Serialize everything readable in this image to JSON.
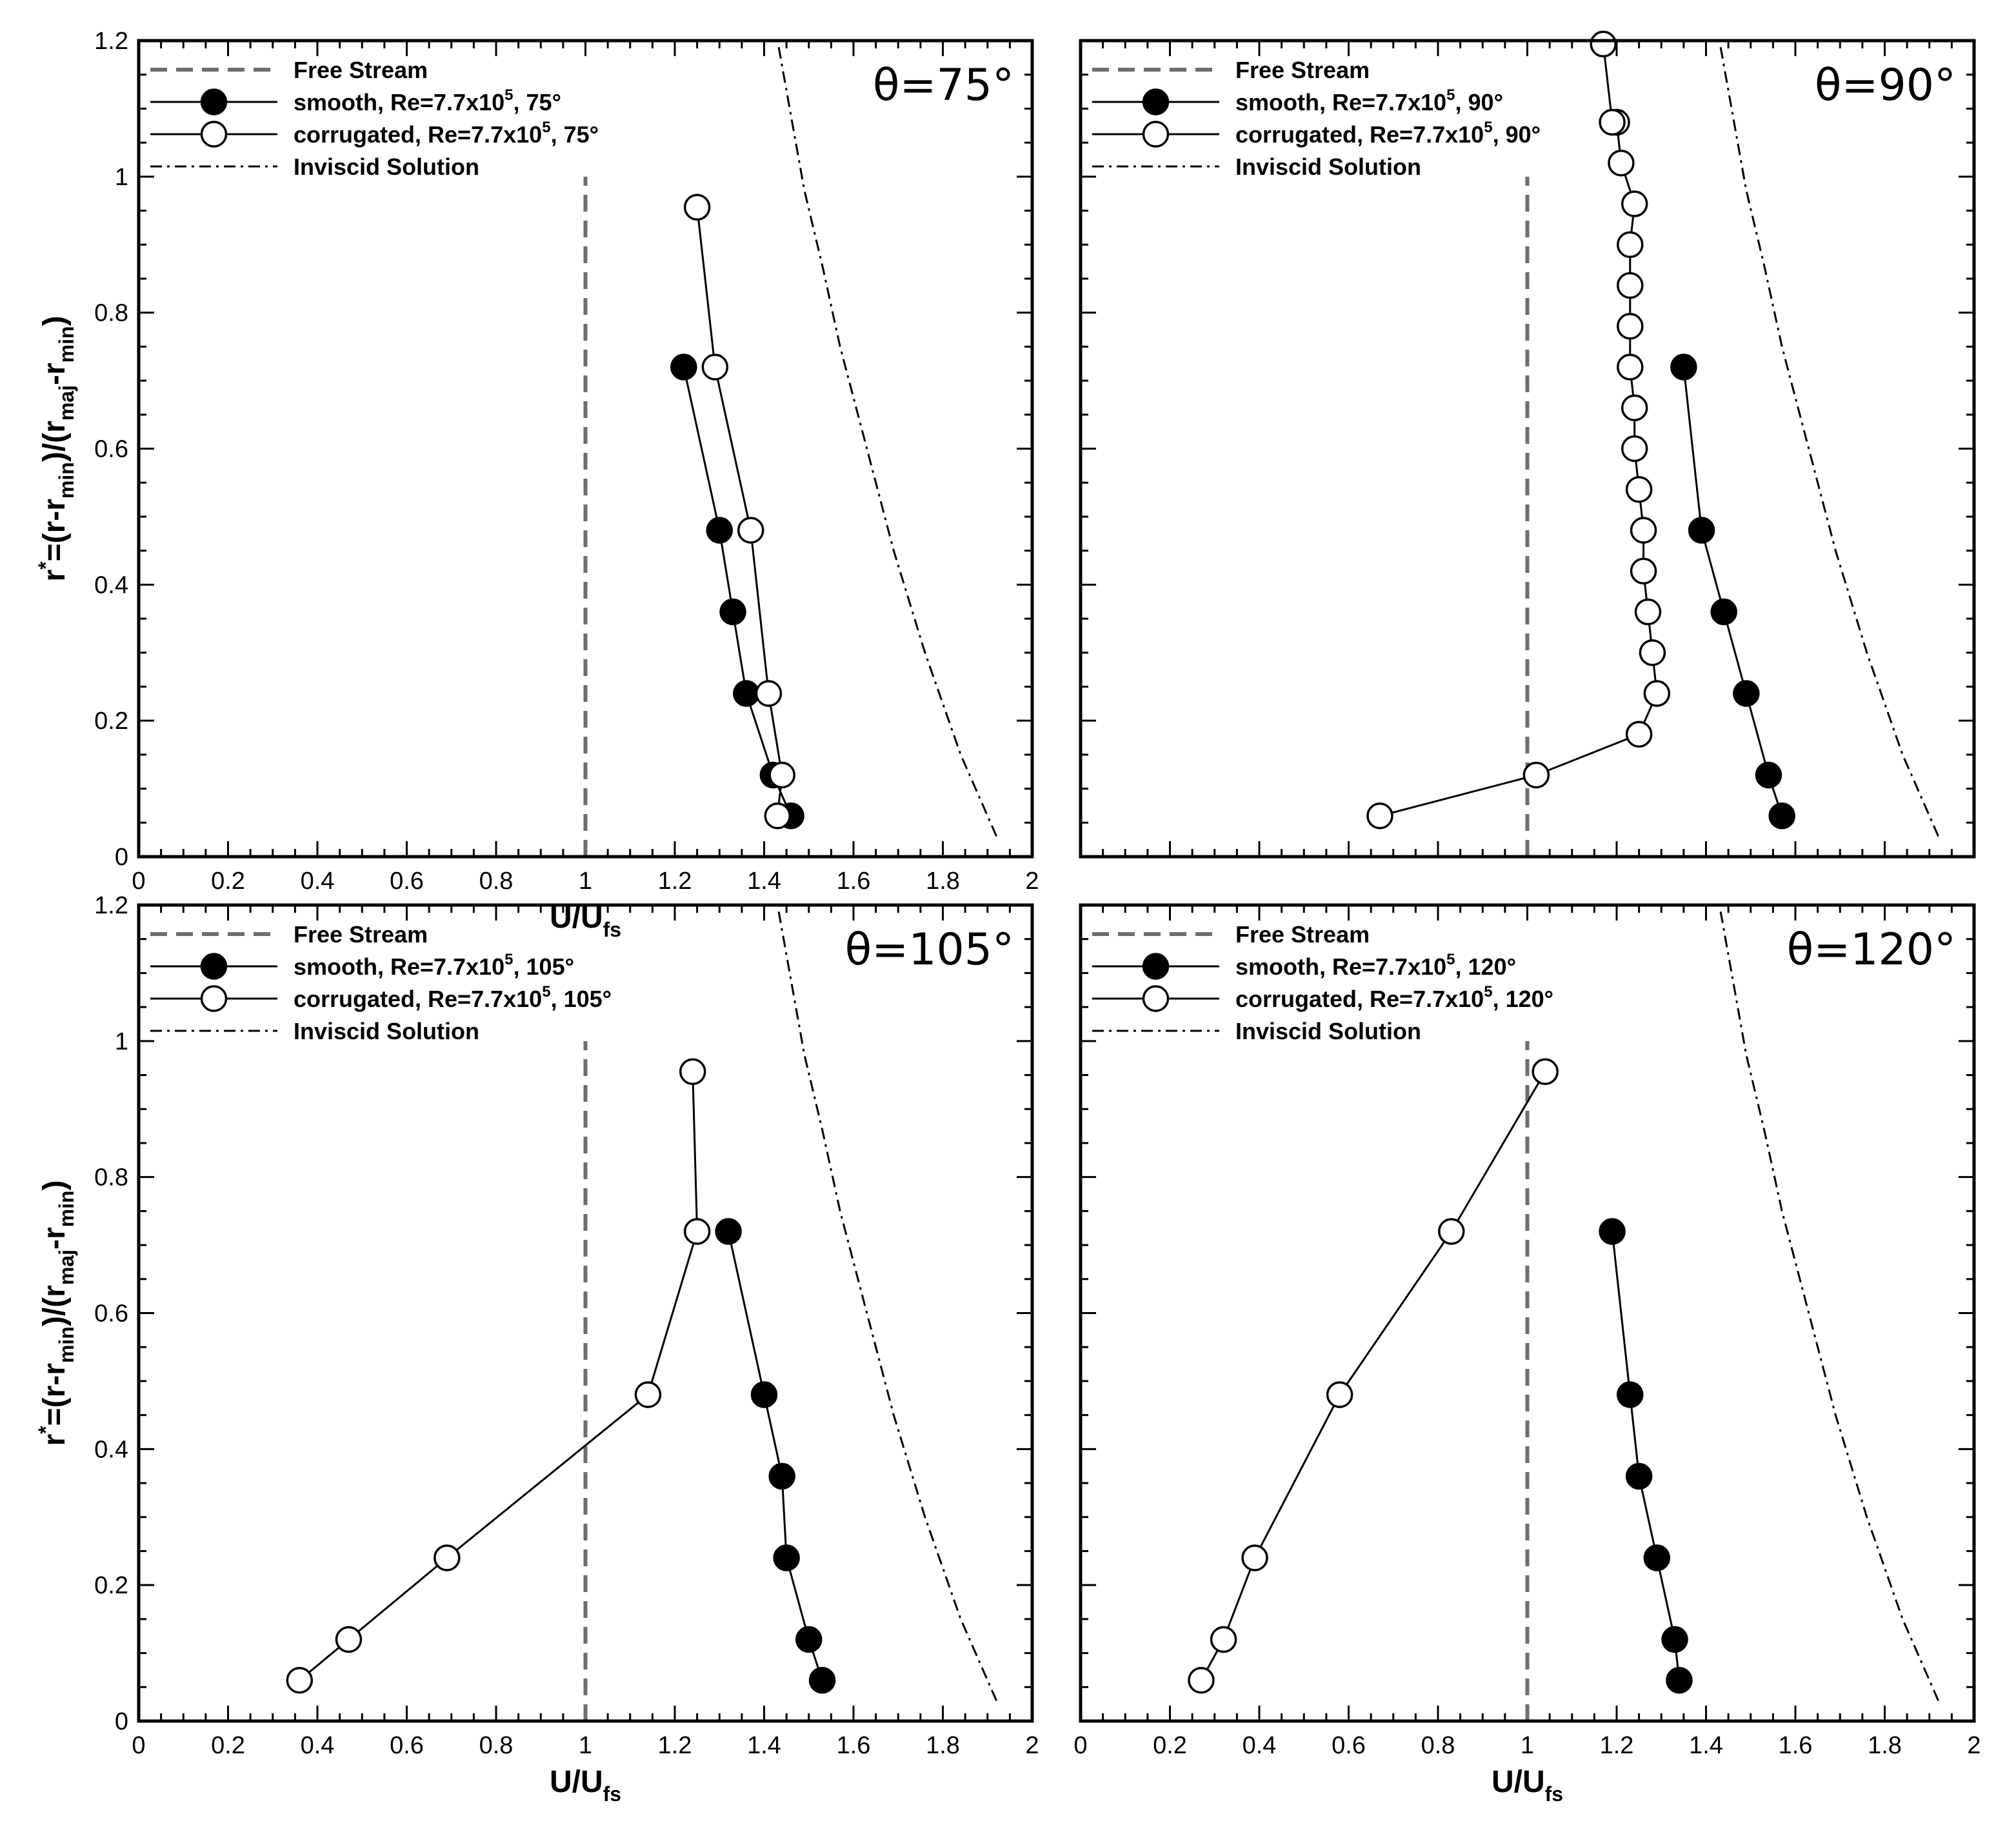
{
  "chart_data": [
    {
      "type": "line",
      "title": "θ=75°",
      "xlabel": "U/U_fs",
      "ylabel": "r*=(r-r_min)/(r_maj-r_min)",
      "xlim": [
        0,
        2
      ],
      "ylim": [
        0,
        1.2
      ],
      "x_ticks": [
        "0",
        "0.2",
        "0.4",
        "0.6",
        "0.8",
        "1",
        "1.2",
        "1.4",
        "1.6",
        "1.8",
        "2"
      ],
      "y_ticks": [
        "0",
        "0.2",
        "0.4",
        "0.6",
        "0.8",
        "1",
        "1.2"
      ],
      "free_stream": {
        "name": "Free Stream",
        "x": 1.0,
        "y": [
          0,
          1.0
        ]
      },
      "series": [
        {
          "name": "smooth, Re=7.7x10^5, 75°",
          "label": "smooth, Re=7.7x10",
          "sup": "5",
          "label_suffix": ", 75°",
          "marker": "filled",
          "x": [
            1.46,
            1.42,
            1.36,
            1.33,
            1.3,
            1.22
          ],
          "y": [
            0.06,
            0.12,
            0.24,
            0.36,
            0.48,
            0.72
          ]
        },
        {
          "name": "corrugated, Re=7.7x10^5, 75°",
          "label": "corrugated, Re=7.7x10",
          "sup": "5",
          "label_suffix": ", 75°",
          "marker": "open",
          "x": [
            1.43,
            1.44,
            1.41,
            1.37,
            1.29,
            1.25
          ],
          "y": [
            0.06,
            0.12,
            0.24,
            0.48,
            0.72,
            0.955
          ]
        }
      ],
      "inviscid": {
        "name": "Inviscid Solution",
        "x": [
          1.92,
          1.84,
          1.76,
          1.69,
          1.63,
          1.57,
          1.53,
          1.49,
          1.46,
          1.43
        ],
        "y": [
          0.03,
          0.15,
          0.3,
          0.45,
          0.6,
          0.75,
          0.87,
          0.98,
          1.09,
          1.2
        ]
      },
      "legend": [
        "Free Stream",
        "smooth, Re=7.7x10^5, 75°",
        "corrugated, Re=7.7x10^5, 75°",
        "Inviscid Solution"
      ]
    },
    {
      "type": "line",
      "title": "θ=90°",
      "xlabel": "",
      "ylabel": "",
      "xlim": [
        0,
        2
      ],
      "ylim": [
        0,
        1.2
      ],
      "free_stream": {
        "name": "Free Stream",
        "x": 1.0,
        "y": [
          0,
          1.0
        ]
      },
      "series": [
        {
          "name": "smooth, Re=7.7x10^5, 90°",
          "label": "smooth, Re=7.7x10",
          "sup": "5",
          "label_suffix": ", 90°",
          "marker": "filled",
          "x": [
            1.57,
            1.54,
            1.49,
            1.44,
            1.39,
            1.35
          ],
          "y": [
            0.06,
            0.12,
            0.24,
            0.36,
            0.48,
            0.72
          ]
        },
        {
          "name": "corrugated, Re=7.7x10^5, 90°",
          "label": "corrugated, Re=7.7x10",
          "sup": "5",
          "label_suffix": ", 90°",
          "marker": "open",
          "x": [
            0.67,
            1.02,
            1.25,
            1.29,
            1.28,
            1.27,
            1.26,
            1.26,
            1.25,
            1.24,
            1.24,
            1.23,
            1.23,
            1.23,
            1.23,
            1.24,
            1.21,
            1.2,
            1.2,
            1.19,
            1.17
          ],
          "y": [
            0.06,
            0.12,
            0.18,
            0.24,
            0.3,
            0.36,
            0.42,
            0.48,
            0.54,
            0.6,
            0.66,
            0.72,
            0.78,
            0.84,
            0.9,
            0.96,
            1.02,
            1.08,
            1.08,
            1.08,
            1.195
          ]
        }
      ],
      "inviscid": {
        "name": "Inviscid Solution",
        "x": [
          1.92,
          1.84,
          1.76,
          1.69,
          1.63,
          1.57,
          1.53,
          1.49,
          1.46,
          1.43
        ],
        "y": [
          0.03,
          0.15,
          0.3,
          0.45,
          0.6,
          0.75,
          0.87,
          0.98,
          1.09,
          1.2
        ]
      },
      "legend": [
        "Free Stream",
        "smooth, Re=7.7x10^5, 90°",
        "corrugated, Re=7.7x10^5, 90°",
        "Inviscid Solution"
      ]
    },
    {
      "type": "line",
      "title": "θ=105°",
      "xlabel": "U/U_fs",
      "ylabel": "r*=(r-r_min)/(r_maj-r_min)",
      "xlim": [
        0,
        2
      ],
      "ylim": [
        0,
        1.2
      ],
      "x_ticks": [
        "0",
        "0.2",
        "0.4",
        "0.6",
        "0.8",
        "1",
        "1.2",
        "1.4",
        "1.6",
        "1.8",
        "2"
      ],
      "y_ticks": [
        "0",
        "0.2",
        "0.4",
        "0.6",
        "0.8",
        "1",
        "1.2"
      ],
      "free_stream": {
        "name": "Free Stream",
        "x": 1.0,
        "y": [
          0,
          1.0
        ]
      },
      "series": [
        {
          "name": "smooth, Re=7.7x10^5, 105°",
          "label": "smooth, Re=7.7x10",
          "sup": "5",
          "label_suffix": ", 105°",
          "marker": "filled",
          "x": [
            1.53,
            1.5,
            1.45,
            1.44,
            1.4,
            1.32
          ],
          "y": [
            0.06,
            0.12,
            0.24,
            0.36,
            0.48,
            0.72
          ]
        },
        {
          "name": "corrugated, Re=7.7x10^5, 105°",
          "label": "corrugated, Re=7.7x10",
          "sup": "5",
          "label_suffix": ", 105°",
          "marker": "open",
          "x": [
            0.36,
            0.47,
            0.69,
            1.14,
            1.25,
            1.24
          ],
          "y": [
            0.06,
            0.12,
            0.24,
            0.48,
            0.72,
            0.955
          ]
        }
      ],
      "inviscid": {
        "name": "Inviscid Solution",
        "x": [
          1.92,
          1.84,
          1.76,
          1.69,
          1.63,
          1.57,
          1.53,
          1.49,
          1.46,
          1.43
        ],
        "y": [
          0.03,
          0.15,
          0.3,
          0.45,
          0.6,
          0.75,
          0.87,
          0.98,
          1.09,
          1.2
        ]
      },
      "legend": [
        "Free Stream",
        "smooth, Re=7.7x10^5, 105°",
        "corrugated, Re=7.7x10^5, 105°",
        "Inviscid Solution"
      ]
    },
    {
      "type": "line",
      "title": "θ=120°",
      "xlabel": "U/U_fs",
      "ylabel": "",
      "xlim": [
        0,
        2
      ],
      "ylim": [
        0,
        1.2
      ],
      "x_ticks": [
        "0",
        "0.2",
        "0.4",
        "0.6",
        "0.8",
        "1",
        "1.2",
        "1.4",
        "1.6",
        "1.8",
        "2"
      ],
      "free_stream": {
        "name": "Free Stream",
        "x": 1.0,
        "y": [
          0,
          1.0
        ]
      },
      "series": [
        {
          "name": "smooth, Re=7.7x10^5, 120°",
          "label": "smooth, Re=7.7x10",
          "sup": "5",
          "label_suffix": ", 120°",
          "marker": "filled",
          "x": [
            1.34,
            1.33,
            1.29,
            1.25,
            1.23,
            1.19
          ],
          "y": [
            0.06,
            0.12,
            0.24,
            0.36,
            0.48,
            0.72
          ]
        },
        {
          "name": "corrugated, Re=7.7x10^5, 120°",
          "label": "corrugated, Re=7.7x10",
          "sup": "5",
          "label_suffix": ", 120°",
          "marker": "open",
          "x": [
            0.27,
            0.32,
            0.39,
            0.58,
            0.83,
            1.04
          ],
          "y": [
            0.06,
            0.12,
            0.24,
            0.48,
            0.72,
            0.955
          ]
        }
      ],
      "inviscid": {
        "name": "Inviscid Solution",
        "x": [
          1.92,
          1.84,
          1.76,
          1.69,
          1.63,
          1.57,
          1.53,
          1.49,
          1.46,
          1.43
        ],
        "y": [
          0.03,
          0.15,
          0.3,
          0.45,
          0.6,
          0.75,
          0.87,
          0.98,
          1.09,
          1.2
        ]
      },
      "legend": [
        "Free Stream",
        "smooth, Re=7.7x10^5, 120°",
        "corrugated, Re=7.7x10^5, 120°",
        "Inviscid Solution"
      ]
    }
  ],
  "labels": {
    "xaxis_main": "U/U",
    "xaxis_sub": "fs",
    "yaxis_r": "r",
    "yaxis_star": "*",
    "yaxis_a": "=(r-r",
    "yaxis_min": "min",
    "yaxis_b": ")/(r",
    "yaxis_maj": "maj",
    "yaxis_c": "-r",
    "yaxis_min2": "min",
    "yaxis_d": ")"
  },
  "colors": {
    "free_stream": "#6e6e6e",
    "line": "#000000",
    "background": "#ffffff"
  }
}
